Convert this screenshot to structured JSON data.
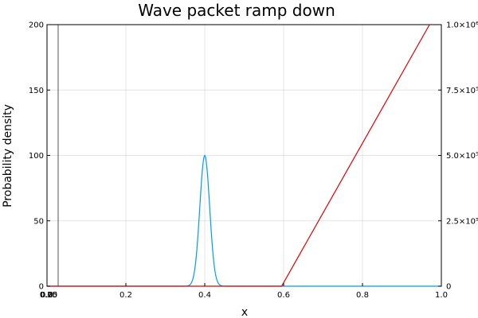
{
  "chart_data": {
    "type": "line",
    "title": "Wave packet ramp down",
    "xlabel": "x",
    "ylabel": "Probability density",
    "y2label": "",
    "xlim": [
      0,
      1
    ],
    "ylim": [
      0,
      200
    ],
    "y2lim": [
      0,
      1000000
    ],
    "grid": true,
    "x_ticks": [
      0.0,
      0.2,
      0.4,
      0.6,
      0.8,
      1.0
    ],
    "x_tick_labels": [
      "0.0",
      "0.2",
      "0.4",
      "0.6",
      "0.8",
      "1.0"
    ],
    "x_overlap_ticks": [
      0.0,
      0.0,
      0.0
    ],
    "x_overlap_tick_labels": [
      "0.00",
      "0.25",
      "0.75"
    ],
    "y_ticks": [
      0,
      50,
      100,
      150,
      200
    ],
    "y_tick_labels": [
      "0",
      "50",
      "100",
      "150",
      "200"
    ],
    "y2_ticks": [
      0,
      250000,
      500000,
      750000,
      1000000
    ],
    "y2_tick_labels": [
      "0",
      "2.5×10⁵",
      "5.0×10⁵",
      "7.5×10⁵",
      "1.0×10⁶"
    ],
    "series": [
      {
        "name": "",
        "axis": "left",
        "color": "#009af9",
        "kind": "gaussian",
        "center": 0.4,
        "peak": 100,
        "sigma": 0.0125,
        "x_range": [
          0,
          1
        ]
      },
      {
        "name": "",
        "axis": "right",
        "color": "#e00000",
        "kind": "piecewise-linear",
        "x": [
          0.0,
          0.595,
          0.97
        ],
        "y": [
          0,
          0,
          1000000
        ]
      }
    ]
  }
}
